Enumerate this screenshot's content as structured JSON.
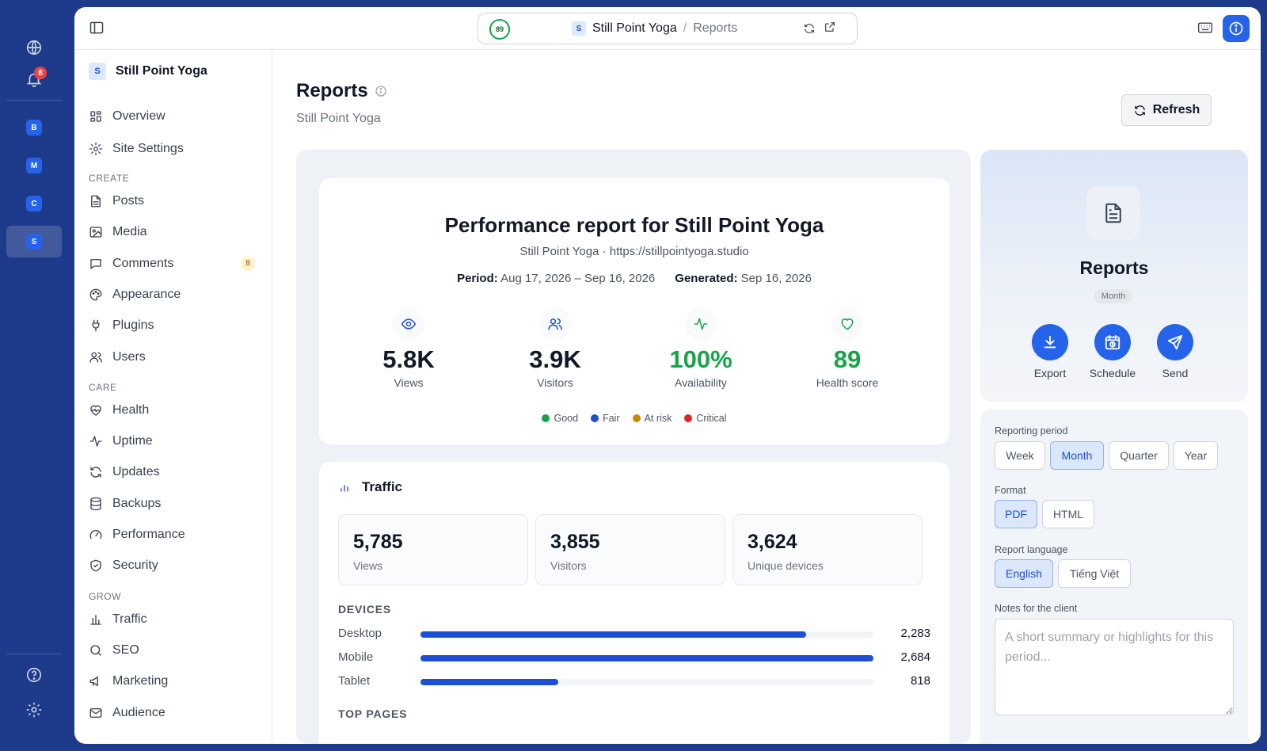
{
  "rail": {
    "notification_count": "8",
    "sites": [
      {
        "letter": "B",
        "active": false
      },
      {
        "letter": "M",
        "active": false
      },
      {
        "letter": "C",
        "active": false
      },
      {
        "letter": "S",
        "active": true
      }
    ]
  },
  "topbar": {
    "score": "89",
    "site_letter": "S",
    "site_name": "Still Point Yoga",
    "separator": "/",
    "page": "Reports"
  },
  "sidebar": {
    "site_letter": "S",
    "site_name": "Still Point Yoga",
    "items": [
      {
        "label": "Overview",
        "icon": "grid-icon"
      },
      {
        "label": "Site Settings",
        "icon": "gear-icon"
      }
    ],
    "sections": [
      {
        "title": "CREATE",
        "items": [
          {
            "label": "Posts",
            "icon": "document-icon"
          },
          {
            "label": "Media",
            "icon": "image-icon"
          },
          {
            "label": "Comments",
            "icon": "comment-icon",
            "count": "8"
          },
          {
            "label": "Appearance",
            "icon": "palette-icon"
          },
          {
            "label": "Plugins",
            "icon": "plug-icon"
          },
          {
            "label": "Users",
            "icon": "users-icon"
          }
        ]
      },
      {
        "title": "CARE",
        "items": [
          {
            "label": "Health",
            "icon": "heart-pulse-icon"
          },
          {
            "label": "Uptime",
            "icon": "activity-icon"
          },
          {
            "label": "Updates",
            "icon": "refresh-icon"
          },
          {
            "label": "Backups",
            "icon": "database-icon"
          },
          {
            "label": "Performance",
            "icon": "gauge-icon"
          },
          {
            "label": "Security",
            "icon": "shield-icon"
          }
        ]
      },
      {
        "title": "GROW",
        "items": [
          {
            "label": "Traffic",
            "icon": "bar-chart-icon"
          },
          {
            "label": "SEO",
            "icon": "search-icon"
          },
          {
            "label": "Marketing",
            "icon": "megaphone-icon"
          },
          {
            "label": "Audience",
            "icon": "mail-icon"
          }
        ]
      }
    ]
  },
  "header": {
    "title": "Reports",
    "subtitle": "Still Point Yoga",
    "refresh_label": "Refresh"
  },
  "report": {
    "title": "Performance report for Still Point Yoga",
    "site_line": "Still Point Yoga · https://stillpointyoga.studio",
    "period_label": "Period:",
    "period_value": "Aug 17, 2026 – Sep 16, 2026",
    "generated_label": "Generated:",
    "generated_value": "Sep 16, 2026",
    "metrics": [
      {
        "value": "5.8K",
        "label": "Views",
        "icon": "eye-icon",
        "color": "#111827",
        "icon_color": "#1d4ed8"
      },
      {
        "value": "3.9K",
        "label": "Visitors",
        "icon": "users-icon",
        "color": "#111827",
        "icon_color": "#1d4ed8"
      },
      {
        "value": "100%",
        "label": "Availability",
        "icon": "activity-icon",
        "color": "#16a34a",
        "icon_color": "#16a34a"
      },
      {
        "value": "89",
        "label": "Health score",
        "icon": "heart-icon",
        "color": "#16a34a",
        "icon_color": "#16a34a"
      }
    ],
    "legend": [
      {
        "label": "Good",
        "color": "#16a34a"
      },
      {
        "label": "Fair",
        "color": "#1d4ed8"
      },
      {
        "label": "At risk",
        "color": "#ca8a04"
      },
      {
        "label": "Critical",
        "color": "#dc2626"
      }
    ]
  },
  "traffic": {
    "title": "Traffic",
    "stats": [
      {
        "value": "5,785",
        "label": "Views"
      },
      {
        "value": "3,855",
        "label": "Visitors"
      },
      {
        "value": "3,624",
        "label": "Unique devices"
      }
    ],
    "devices_title": "DEVICES",
    "devices": [
      {
        "label": "Desktop",
        "value": "2,283",
        "n": 2283
      },
      {
        "label": "Mobile",
        "value": "2,684",
        "n": 2684
      },
      {
        "label": "Tablet",
        "value": "818",
        "n": 818
      }
    ],
    "top_pages_title": "TOP PAGES"
  },
  "panel": {
    "title": "Reports",
    "badge": "Month",
    "actions": [
      {
        "label": "Export",
        "icon": "download-icon"
      },
      {
        "label": "Schedule",
        "icon": "calendar-clock-icon"
      },
      {
        "label": "Send",
        "icon": "send-icon"
      }
    ],
    "period_label": "Reporting period",
    "periods": [
      "Week",
      "Month",
      "Quarter",
      "Year"
    ],
    "period_selected": "Month",
    "format_label": "Format",
    "formats": [
      "PDF",
      "HTML"
    ],
    "format_selected": "PDF",
    "language_label": "Report language",
    "languages": [
      "English",
      "Tiếng Việt"
    ],
    "language_selected": "English",
    "notes_label": "Notes for the client",
    "notes_placeholder": "A short summary or highlights for this period..."
  },
  "colors": {
    "frame": "#1e3a8a",
    "accent": "#2563eb",
    "good": "#16a34a"
  }
}
